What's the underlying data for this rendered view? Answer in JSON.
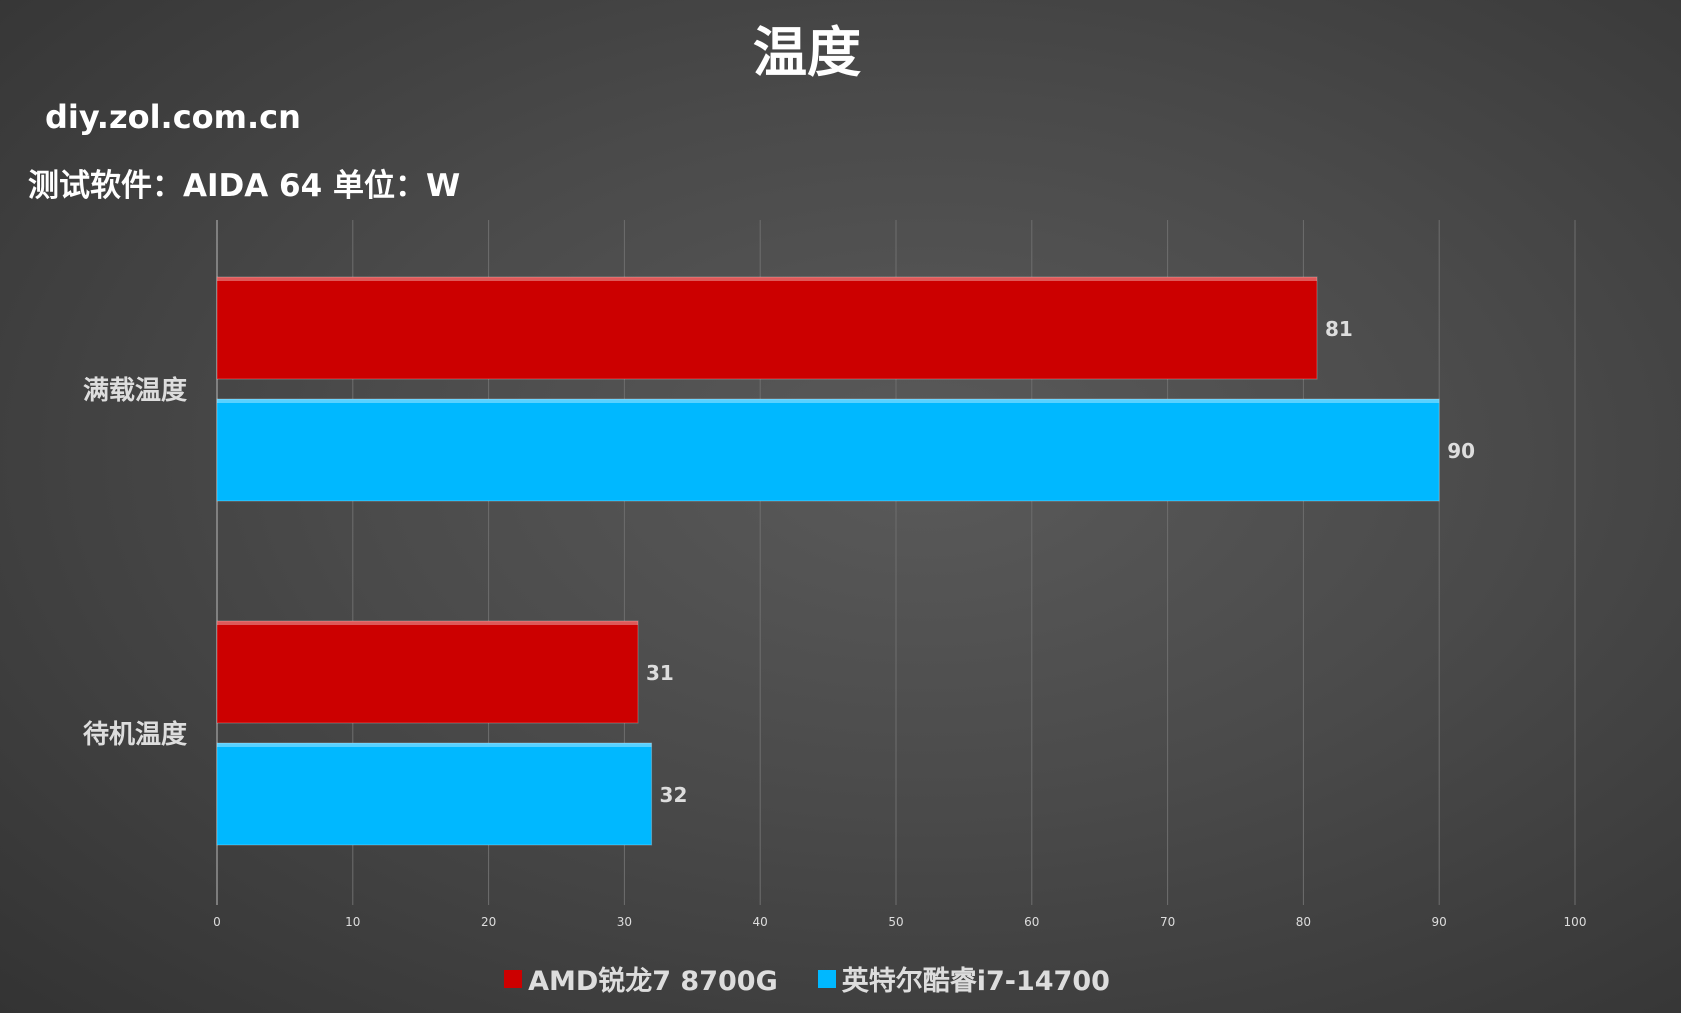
{
  "header": {
    "title": "温度",
    "site": "diy.zol.com.cn",
    "subtitle": "测试软件：AIDA 64 单位：W"
  },
  "colors": {
    "amd": "#cc0000",
    "intel": "#00b8ff"
  },
  "chart_data": {
    "type": "bar",
    "orientation": "horizontal",
    "categories": [
      "满载温度",
      "待机温度"
    ],
    "series": [
      {
        "name": "AMD锐龙7 8700G",
        "values": [
          81,
          31
        ],
        "color": "#cc0000"
      },
      {
        "name": "英特尔酷睿i7-14700",
        "values": [
          90,
          32
        ],
        "color": "#00b8ff"
      }
    ],
    "xlim": [
      0,
      100
    ],
    "xticks": [
      0,
      10,
      20,
      30,
      40,
      50,
      60,
      70,
      80,
      90,
      100
    ],
    "grid": true,
    "legend": "bottom",
    "data_labels": true
  }
}
